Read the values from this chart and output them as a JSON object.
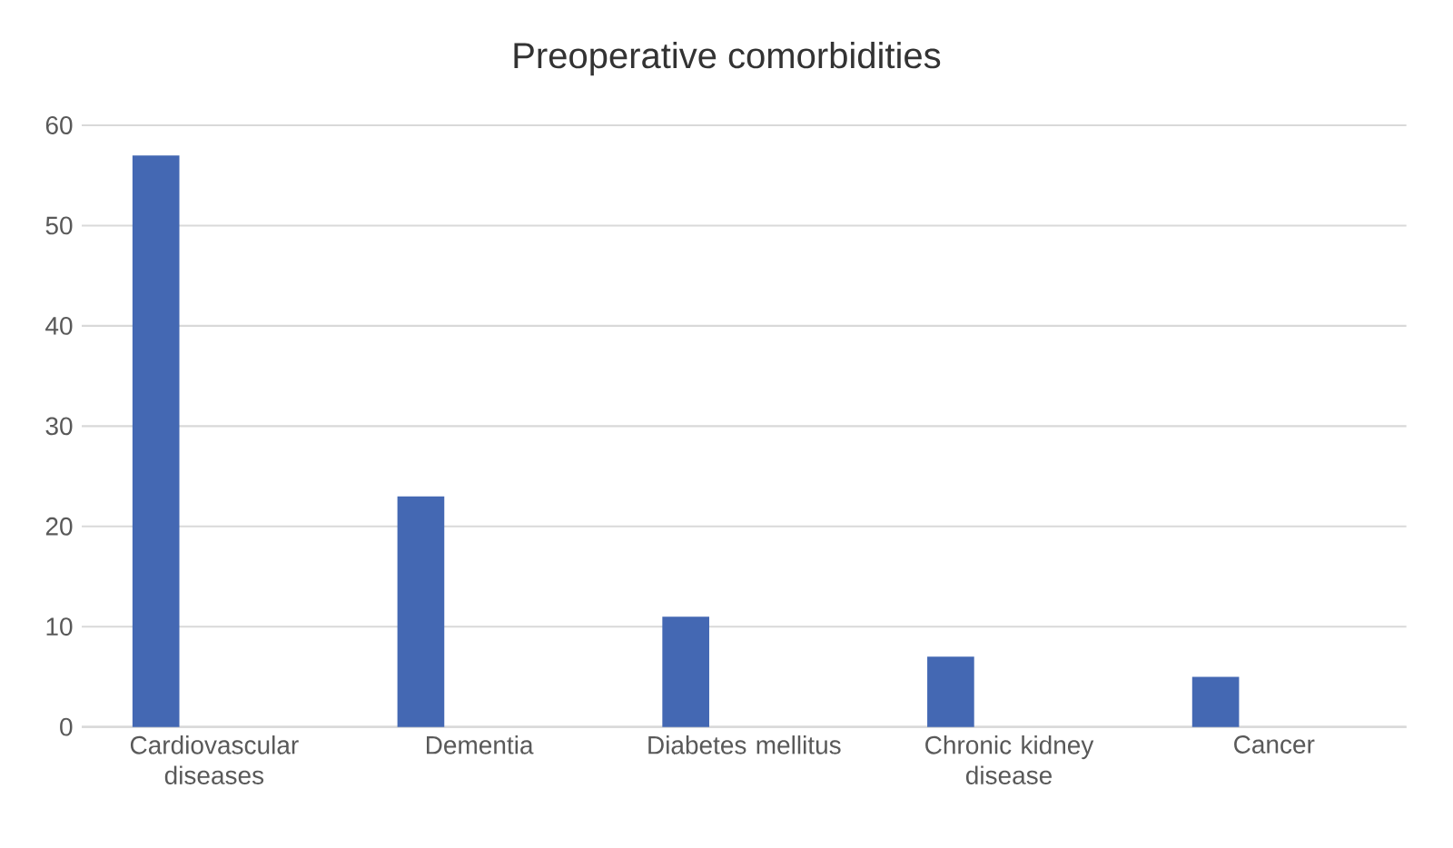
{
  "chart_data": {
    "type": "bar",
    "title": "Preoperative comorbidities",
    "categories": [
      "Cardiovascular diseases",
      "Dementia",
      "Diabetes mellitus",
      "Chronic kidney disease",
      "Cancer"
    ],
    "values": [
      57,
      23,
      11,
      7,
      5
    ],
    "color": "#4468b3",
    "ylim": [
      0,
      60
    ],
    "yticks": [
      0,
      10,
      20,
      30,
      40,
      50,
      60
    ],
    "grid": "y"
  }
}
